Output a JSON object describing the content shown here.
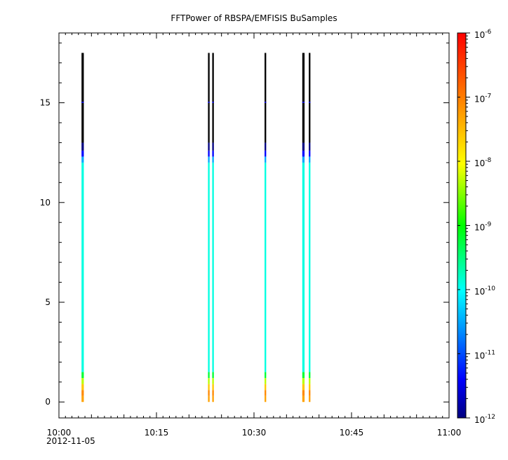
{
  "chart_data": {
    "type": "heatmap",
    "title": "FFTPower of RBSPA/EMFISIS  BuSamples",
    "xlabel": "",
    "ylabel": "",
    "x_ticks": [
      "10:00",
      "10:15",
      "10:30",
      "10:45",
      "11:00"
    ],
    "x_date_label": "2012-11-05",
    "x_range_minutes": [
      0,
      60
    ],
    "y_ticks": [
      "0",
      "5",
      "10",
      "15"
    ],
    "y_tick_values": [
      0,
      5,
      10,
      15
    ],
    "ylim": [
      -0.8,
      18.5
    ],
    "colorbar": {
      "scale": "log",
      "range": [
        1e-12,
        1e-06
      ],
      "tick_mantissa": [
        "10",
        "10",
        "10",
        "10",
        "10",
        "10",
        "10"
      ],
      "tick_exponents": [
        "-12",
        "-11",
        "-10",
        "-9",
        "-8",
        "-7",
        "-6"
      ]
    },
    "columns": [
      {
        "time": "10:03.7",
        "minutes": 3.65,
        "width_min": 0.35
      },
      {
        "time": "10:23.1",
        "minutes": 23.05,
        "width_min": 0.25
      },
      {
        "time": "10:23.7",
        "minutes": 23.7,
        "width_min": 0.25
      },
      {
        "time": "10:31.8",
        "minutes": 31.75,
        "width_min": 0.25
      },
      {
        "time": "10:37.6",
        "minutes": 37.6,
        "width_min": 0.35
      },
      {
        "time": "10:38.5",
        "minutes": 38.55,
        "width_min": 0.25
      }
    ],
    "spectrum_profile": [
      {
        "y0": 0.0,
        "y1": 0.3,
        "log_power": -7.3
      },
      {
        "y0": 0.3,
        "y1": 0.6,
        "log_power": -7.1
      },
      {
        "y0": 0.6,
        "y1": 0.9,
        "log_power": -7.6
      },
      {
        "y0": 0.9,
        "y1": 1.2,
        "log_power": -8.3
      },
      {
        "y0": 1.2,
        "y1": 1.5,
        "log_power": -9.2
      },
      {
        "y0": 1.5,
        "y1": 12.0,
        "log_power": -9.9
      },
      {
        "y0": 12.0,
        "y1": 12.3,
        "log_power": -10.5
      },
      {
        "y0": 12.3,
        "y1": 12.6,
        "log_power": -11.4
      },
      {
        "y0": 12.6,
        "y1": 13.0,
        "log_power": -12.0
      },
      {
        "y0": 13.0,
        "y1": 17.5,
        "log_power": -13.0
      }
    ]
  }
}
